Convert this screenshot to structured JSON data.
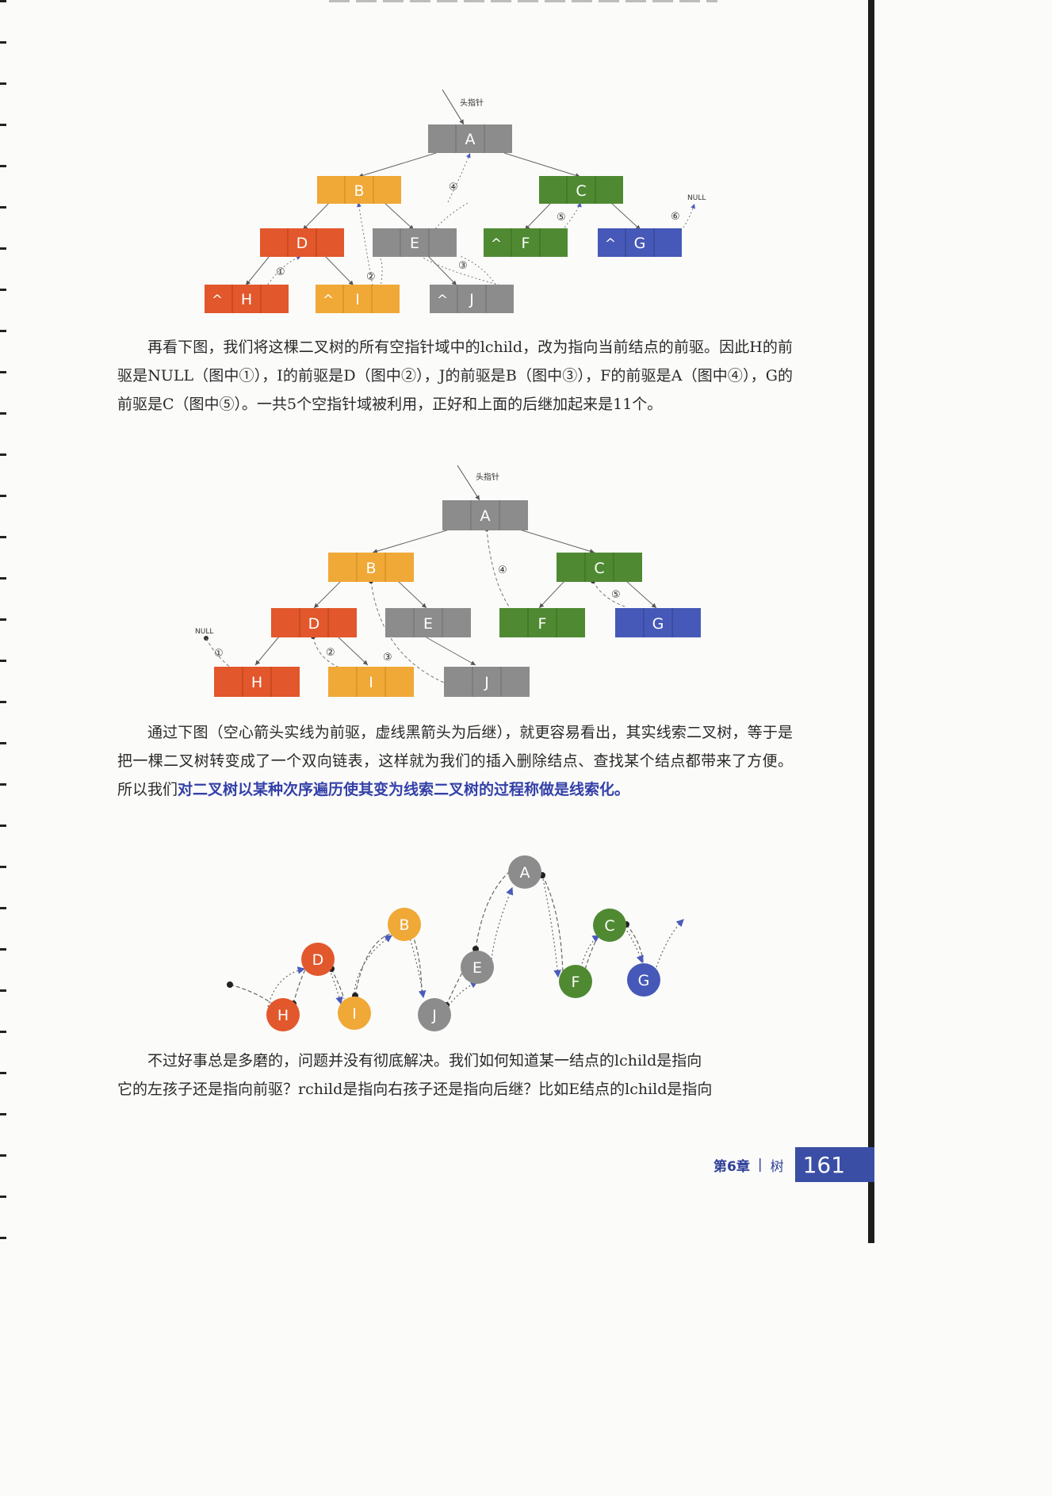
{
  "diagram1": {
    "head_label": "头指针",
    "null_label": "NULL",
    "nodes": [
      {
        "id": "A",
        "label": "A",
        "color": "#8c8c8c"
      },
      {
        "id": "B",
        "label": "B",
        "color": "#f0a836"
      },
      {
        "id": "C",
        "label": "C",
        "color": "#4f8a32"
      },
      {
        "id": "D",
        "label": "D",
        "color": "#e2572b"
      },
      {
        "id": "E",
        "label": "E",
        "color": "#8c8c8c"
      },
      {
        "id": "F",
        "label": "F",
        "left_caret": "^",
        "color": "#4f8a32"
      },
      {
        "id": "G",
        "label": "G",
        "left_caret": "^",
        "color": "#4659b8"
      },
      {
        "id": "H",
        "label": "H",
        "left_caret": "^",
        "color": "#e2572b"
      },
      {
        "id": "I",
        "label": "I",
        "left_caret": "^",
        "color": "#f0a836"
      },
      {
        "id": "J",
        "label": "J",
        "left_caret": "^",
        "color": "#8c8c8c"
      }
    ],
    "markers": [
      "①",
      "②",
      "③",
      "④",
      "⑤",
      "⑥"
    ]
  },
  "paragraph1": {
    "text": "再看下图，我们将这棵二叉树的所有空指针域中的lchild，改为指向当前结点的前驱。因此H的前驱是NULL（图中①），I的前驱是D（图中②），J的前驱是B（图中③），F的前驱是A（图中④），G的前驱是C（图中⑤）。一共5个空指针域被利用，正好和上面的后继加起来是11个。"
  },
  "diagram2": {
    "head_label": "头指针",
    "null_label": "NULL",
    "nodes": [
      {
        "id": "A",
        "label": "A",
        "color": "#8c8c8c"
      },
      {
        "id": "B",
        "label": "B",
        "color": "#f0a836"
      },
      {
        "id": "C",
        "label": "C",
        "color": "#4f8a32"
      },
      {
        "id": "D",
        "label": "D",
        "color": "#e2572b"
      },
      {
        "id": "E",
        "label": "E",
        "color": "#8c8c8c"
      },
      {
        "id": "F",
        "label": "F",
        "color": "#4f8a32"
      },
      {
        "id": "G",
        "label": "G",
        "color": "#4659b8"
      },
      {
        "id": "H",
        "label": "H",
        "color": "#e2572b"
      },
      {
        "id": "I",
        "label": "I",
        "color": "#f0a836"
      },
      {
        "id": "J",
        "label": "J",
        "color": "#8c8c8c"
      }
    ],
    "markers": [
      "①",
      "②",
      "③",
      "④",
      "⑤"
    ]
  },
  "paragraph2": {
    "text_before": "通过下图（空心箭头实线为前驱，虚线黑箭头为后继），就更容易看出，其实线索二叉树，等于是把一棵二叉树转变成了一个双向链表，这样就为我们的插入删除结点、查找某个结点都带来了方便。所以我们",
    "highlight": "对二叉树以某种次序遍历使其变为线索二叉树的过程称做是线索化。"
  },
  "diagram3": {
    "nodes": [
      {
        "id": "H",
        "label": "H",
        "color": "#e2572b"
      },
      {
        "id": "D",
        "label": "D",
        "color": "#e2572b"
      },
      {
        "id": "I",
        "label": "I",
        "color": "#f0a836"
      },
      {
        "id": "B",
        "label": "B",
        "color": "#f0a836"
      },
      {
        "id": "J",
        "label": "J",
        "color": "#8c8c8c"
      },
      {
        "id": "E",
        "label": "E",
        "color": "#8c8c8c"
      },
      {
        "id": "A",
        "label": "A",
        "color": "#8c8c8c"
      },
      {
        "id": "F",
        "label": "F",
        "color": "#4f8a32"
      },
      {
        "id": "C",
        "label": "C",
        "color": "#4f8a32"
      },
      {
        "id": "G",
        "label": "G",
        "color": "#4659b8"
      }
    ]
  },
  "paragraph3": {
    "line1": "不过好事总是多磨的，问题并没有彻底解决。我们如何知道某一结点的lchild是指向",
    "line2": "它的左孩子还是指向前驱？rchild是指向右孩子还是指向后继？比如E结点的lchild是指向"
  },
  "footer": {
    "chapter": "第6章",
    "separator": "|",
    "title": "树",
    "page_number": "161"
  }
}
